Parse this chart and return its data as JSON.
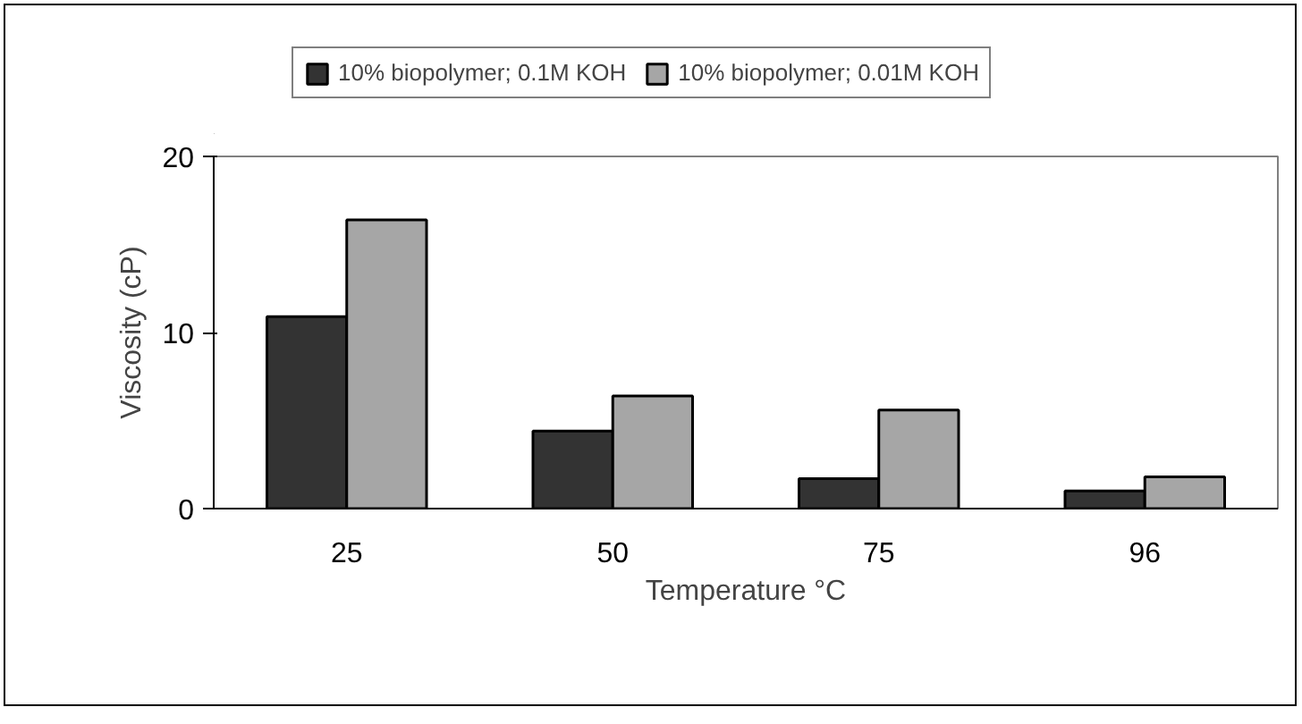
{
  "chart_data": {
    "type": "bar",
    "xlabel": "Temperature °C",
    "ylabel": "Viscosity (cP)",
    "categories": [
      "25",
      "50",
      "75",
      "96"
    ],
    "series": [
      {
        "name": "10% biopolymer; 0.1M KOH",
        "color": "#333333",
        "values": [
          10.9,
          4.4,
          1.7,
          1.0
        ]
      },
      {
        "name": "10% biopolymer; 0.01M KOH",
        "color": "#a6a6a6",
        "values": [
          16.4,
          6.4,
          5.6,
          1.8
        ]
      }
    ],
    "ylim": [
      0,
      20
    ],
    "yticks": [
      0,
      10,
      20
    ],
    "grid": false,
    "legend": "top"
  }
}
